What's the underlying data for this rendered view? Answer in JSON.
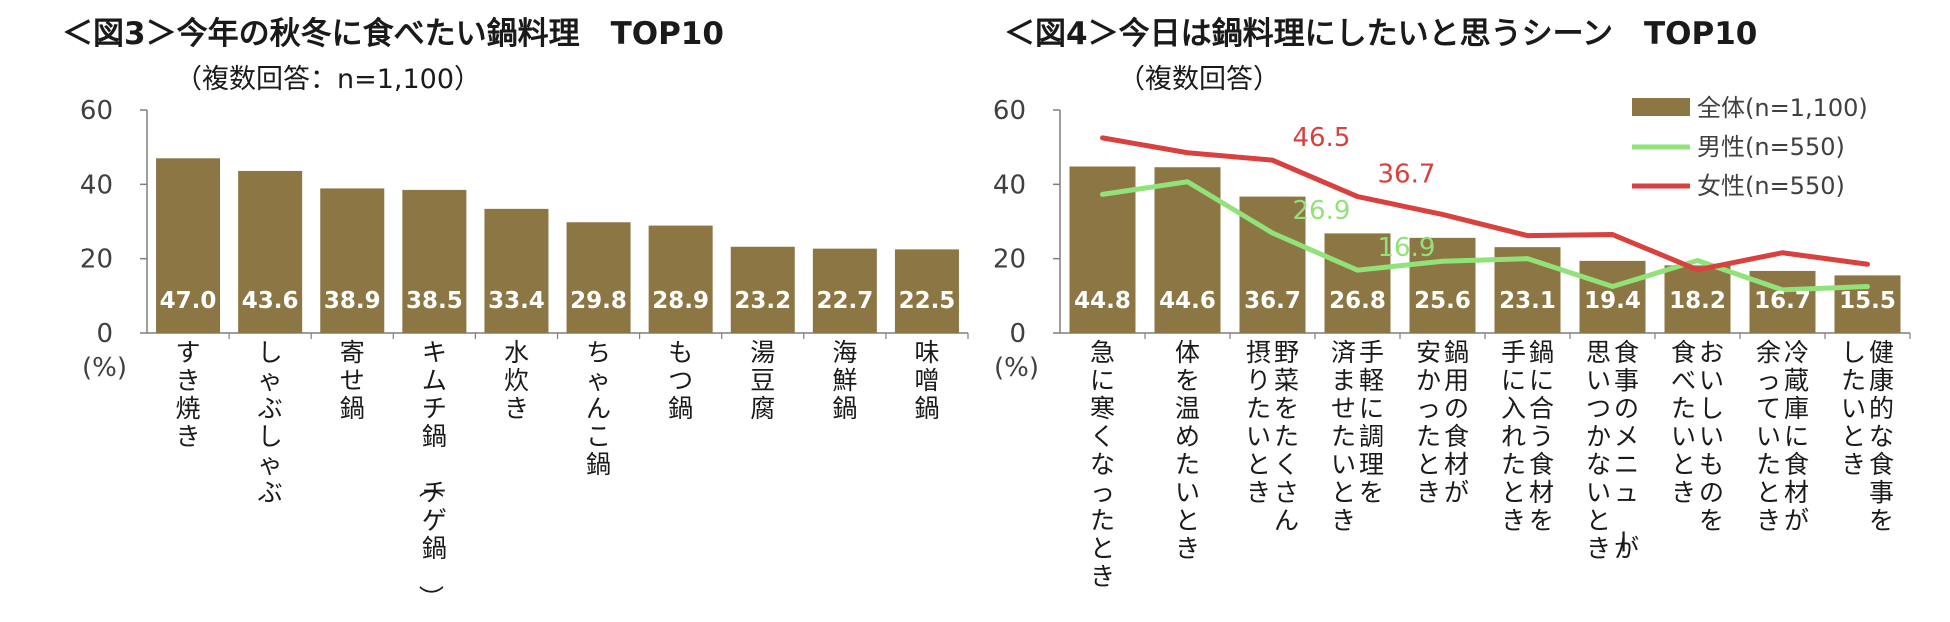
{
  "colors": {
    "bar": "#8C7643",
    "female": "#D9413F",
    "male": "#92E27A",
    "axis": "#7f7f7f",
    "barlabel": "#ffffff"
  },
  "chart_data": [
    {
      "type": "bar",
      "title": "＜図3＞今年の秋冬に食べたい鍋料理　TOP10",
      "subtitle": "（複数回答：n=1,100）",
      "unit": "(%)",
      "ylim": [
        0,
        60
      ],
      "yticks": [
        "0",
        "20",
        "40",
        "60"
      ],
      "categories": [
        "すき焼き",
        "しゃぶしゃぶ",
        "寄せ鍋",
        "キムチ鍋（チゲ鍋）",
        "水炊き",
        "ちゃんこ鍋",
        "もつ鍋",
        "湯豆腐",
        "海鮮鍋",
        "味噌鍋"
      ],
      "values": [
        47.0,
        43.6,
        38.9,
        38.5,
        33.4,
        29.8,
        28.9,
        23.2,
        22.7,
        22.5
      ],
      "value_labels": [
        "47.0",
        "43.6",
        "38.9",
        "38.5",
        "33.4",
        "29.8",
        "28.9",
        "23.2",
        "22.7",
        "22.5"
      ]
    },
    {
      "type": "bar+line",
      "title": "＜図4＞今日は鍋料理にしたいと思うシーン　TOP10",
      "subtitle": "（複数回答）",
      "unit": "(%)",
      "ylim": [
        0,
        60
      ],
      "yticks": [
        "0",
        "20",
        "40",
        "60"
      ],
      "legend_position": "top-right",
      "categories": [
        "急に寒くなったとき",
        "体を温めたいとき",
        "野菜をたくさん摂りたいとき",
        "手軽に調理を済ませたいとき",
        "鍋用の食材が安かったとき",
        "鍋に合う食材を手に入れたとき",
        "食事のメニューが思いつかないとき",
        "おいしいものを食べたいとき",
        "冷蔵庫に食材が余っていたとき",
        "健康的な食事をしたいとき"
      ],
      "category_lines": [
        [
          "急に寒くなったとき"
        ],
        [
          "体を温めたいとき"
        ],
        [
          "野菜をたくさん",
          "摂りたいとき"
        ],
        [
          "手軽に調理を",
          "済ませたいとき"
        ],
        [
          "鍋用の食材が",
          "安かったとき"
        ],
        [
          "鍋に合う食材を",
          "手に入れたとき"
        ],
        [
          "食事のメニューが",
          "思いつかないとき"
        ],
        [
          "おいしいものを",
          "食べたいとき"
        ],
        [
          "冷蔵庫に食材が",
          "余っていたとき"
        ],
        [
          "健康的な食事を",
          "したいとき"
        ]
      ],
      "series": [
        {
          "name": "全体(n=1,100)",
          "type": "bar",
          "values": [
            44.8,
            44.6,
            36.7,
            26.8,
            25.6,
            23.1,
            19.4,
            18.2,
            16.7,
            15.5
          ],
          "labels": [
            "44.8",
            "44.6",
            "36.7",
            "26.8",
            "25.6",
            "23.1",
            "19.4",
            "18.2",
            "16.7",
            "15.5"
          ]
        },
        {
          "name": "男性(n=550)",
          "type": "line",
          "values": [
            37.3,
            40.7,
            26.9,
            16.9,
            19.3,
            20.0,
            12.5,
            19.5,
            11.6,
            12.5
          ],
          "annotations": [
            {
              "index": 2,
              "label": "26.9"
            },
            {
              "index": 3,
              "label": "16.9"
            }
          ]
        },
        {
          "name": "女性(n=550)",
          "type": "line",
          "values": [
            52.5,
            48.5,
            46.5,
            36.7,
            31.9,
            26.2,
            26.5,
            17.0,
            21.6,
            18.5
          ],
          "annotations": [
            {
              "index": 2,
              "label": "46.5"
            },
            {
              "index": 3,
              "label": "36.7"
            }
          ]
        }
      ]
    }
  ]
}
